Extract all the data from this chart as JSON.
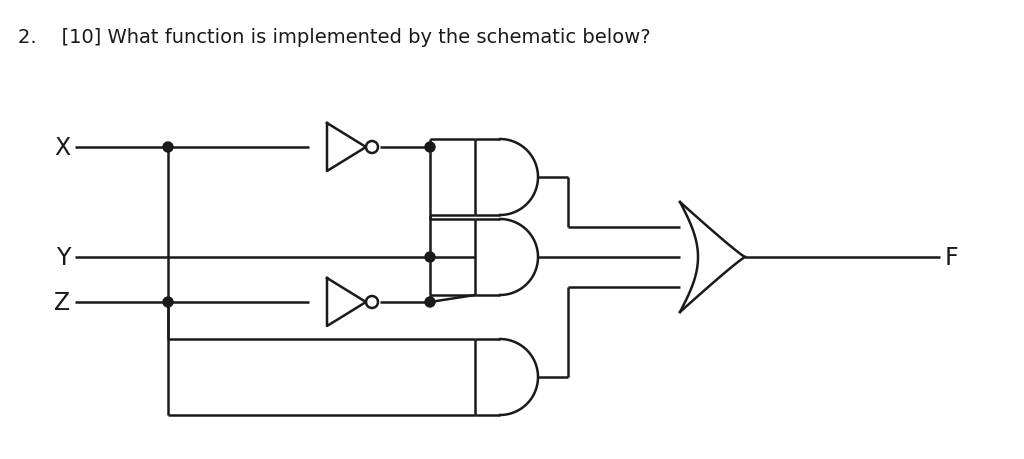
{
  "title_text": "2.    [10] What function is implemented by the schematic below?",
  "bg_color": "#ffffff",
  "line_color": "#1a1a1a",
  "line_width": 1.8,
  "label_X": "X",
  "label_Y": "Y",
  "label_Z": "Z",
  "label_F": "F",
  "title_fontsize": 14,
  "label_fontsize": 17
}
